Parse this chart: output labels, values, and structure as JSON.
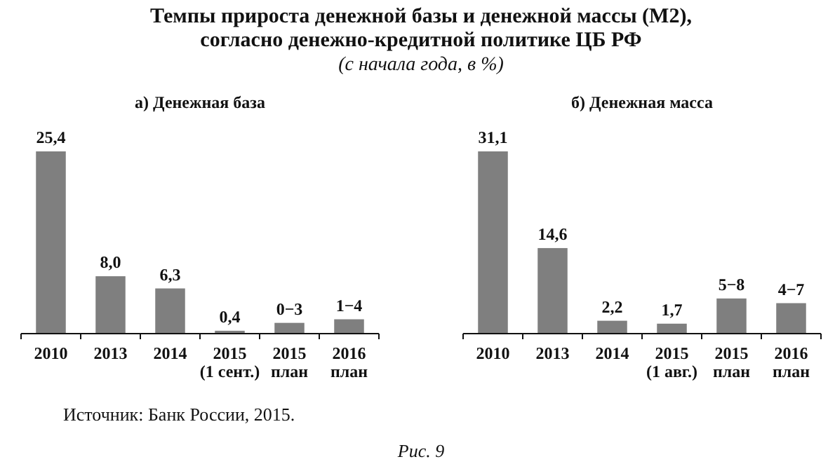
{
  "chart_data": [
    {
      "type": "other",
      "title": "Темпы прироста денежной базы и денежной массы (М2),\nсогласно денежно-кредитной политике ЦБ РФ",
      "subtitle": "(с начала года, в %)",
      "annotations": [
        "Источник: Банк России, 2015.",
        "Рис. 9"
      ]
    },
    {
      "type": "bar",
      "title": "а) Денежная база",
      "categories": [
        "2010",
        "2013",
        "2014",
        "2015\n(1 сент.)",
        "2015\nплан",
        "2016\nплан"
      ],
      "color": "#7f7f7f",
      "values": [
        25.4,
        8.0,
        6.3,
        0.4,
        1.5,
        2.0
      ],
      "value_labels": [
        "25,4",
        "8,0",
        "6,3",
        "0,4",
        null,
        null
      ],
      "annotations": [
        {
          "text": "0−3",
          "x": "2015\nплан",
          "y": 1.5
        },
        {
          "text": "1−4",
          "x": "2016\nплан",
          "y": 2.0
        }
      ]
    },
    {
      "type": "bar",
      "title": "б) Денежная масса",
      "categories": [
        "2010",
        "2013",
        "2014",
        "2015\n(1 авг.)",
        "2015\nплан",
        "2016\nплан"
      ],
      "color": "#7f7f7f",
      "values": [
        31.1,
        14.6,
        2.2,
        1.7,
        6.0,
        5.2
      ],
      "value_labels": [
        "31,1",
        "14,6",
        "2,2",
        "1,7",
        null,
        null
      ],
      "annotations": [
        {
          "text": "5−8",
          "x": "2015\nплан",
          "y": 6.0
        },
        {
          "text": "4−7",
          "x": "2016\nплан",
          "y": 5.2
        }
      ]
    }
  ]
}
